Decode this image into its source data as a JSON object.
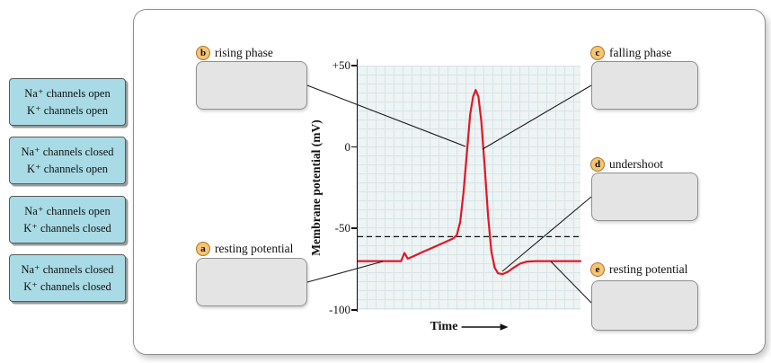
{
  "answer_bank": {
    "options": [
      {
        "line1": "Na⁺ channels open",
        "line2": "K⁺ channels open"
      },
      {
        "line1": "Na⁺ channels closed",
        "line2": "K⁺ channels open"
      },
      {
        "line1": "Na⁺ channels open",
        "line2": "K⁺ channels closed"
      },
      {
        "line1": "Na⁺ channels closed",
        "line2": "K⁺ channels closed"
      }
    ],
    "option_bg_color": "#a8dbe5"
  },
  "diagram": {
    "labels": [
      {
        "letter": "a",
        "text": "resting potential"
      },
      {
        "letter": "b",
        "text": "rising phase"
      },
      {
        "letter": "c",
        "text": "falling phase"
      },
      {
        "letter": "d",
        "text": "undershoot"
      },
      {
        "letter": "e",
        "text": "resting potential"
      }
    ],
    "badge_color": "#f6c472"
  },
  "chart_data": {
    "type": "line",
    "title": "",
    "xlabel": "Time",
    "ylabel": "Membrane potential (mV)",
    "xlim": [
      0,
      100
    ],
    "ylim": [
      -100,
      50
    ],
    "grid": true,
    "yticks": [
      {
        "value": 50,
        "label": "+50"
      },
      {
        "value": 0,
        "label": "0"
      },
      {
        "value": -50,
        "label": "-50"
      },
      {
        "value": -100,
        "label": "-100"
      }
    ],
    "threshold_line": {
      "y": -55,
      "style": "dashed"
    },
    "resting_potential_mV": -70,
    "peak_mV": 35,
    "undershoot_mV": -78,
    "series": [
      {
        "name": "action potential",
        "color": "#e01826",
        "points": [
          [
            0,
            -70
          ],
          [
            19.5,
            -70
          ],
          [
            21,
            -65
          ],
          [
            22.5,
            -68.5
          ],
          [
            25,
            -67
          ],
          [
            29,
            -64.5
          ],
          [
            34,
            -61.5
          ],
          [
            39,
            -58.5
          ],
          [
            43,
            -56
          ],
          [
            44.5,
            -54
          ],
          [
            46,
            -46
          ],
          [
            47.5,
            -28
          ],
          [
            49,
            -4
          ],
          [
            50.5,
            20
          ],
          [
            51.8,
            31
          ],
          [
            53,
            35
          ],
          [
            54.2,
            31
          ],
          [
            55.5,
            16
          ],
          [
            57,
            -12
          ],
          [
            58.5,
            -42
          ],
          [
            60,
            -64
          ],
          [
            61.5,
            -74
          ],
          [
            63,
            -77.5
          ],
          [
            65,
            -78
          ],
          [
            67.5,
            -76.5
          ],
          [
            70,
            -74
          ],
          [
            73,
            -71.5
          ],
          [
            76,
            -70.3
          ],
          [
            80,
            -70
          ],
          [
            100,
            -70
          ]
        ]
      }
    ]
  }
}
